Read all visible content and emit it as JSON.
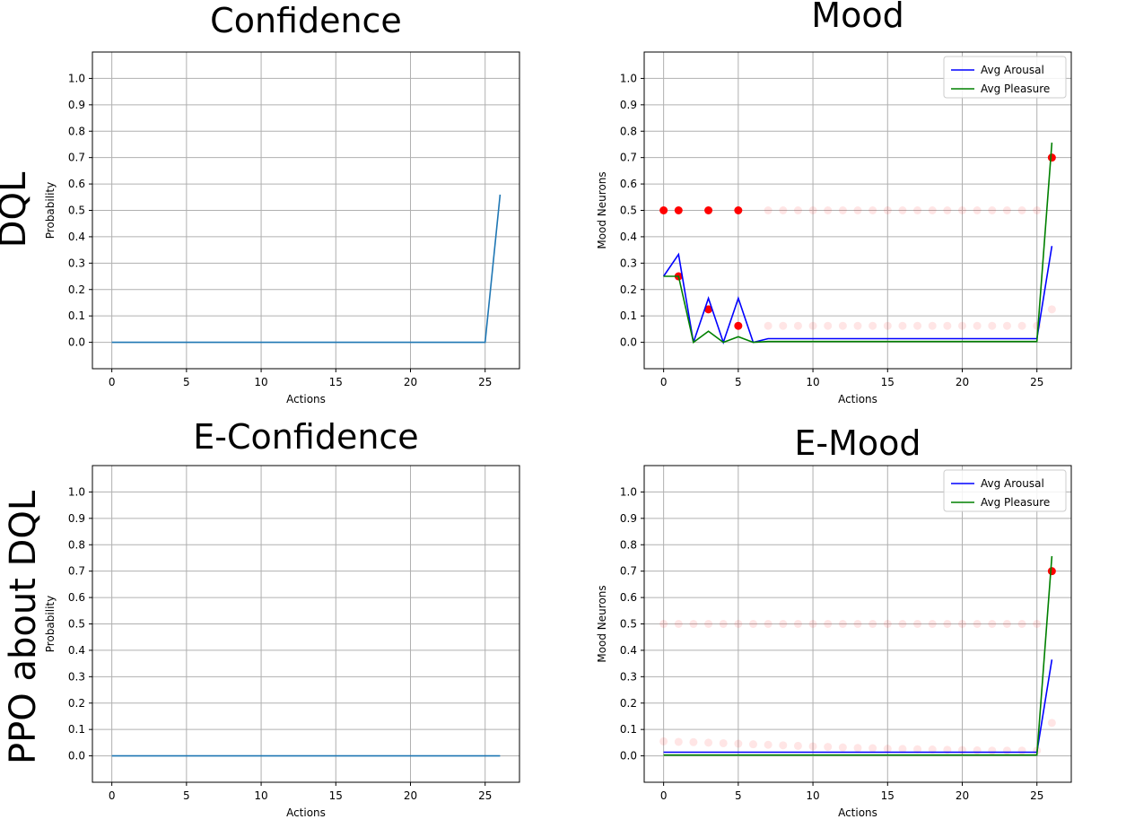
{
  "row_labels": [
    "DQL",
    "PPO about DQL"
  ],
  "chart_data": [
    {
      "type": "line",
      "title": "Confidence",
      "xlabel": "Actions",
      "ylabel": "Probability",
      "xlim": [
        -1.3,
        27.3
      ],
      "ylim": [
        -0.1,
        1.1
      ],
      "xticks": [
        0,
        5,
        10,
        15,
        20,
        25
      ],
      "yticks": [
        0.0,
        0.1,
        0.2,
        0.3,
        0.4,
        0.5,
        0.6,
        0.7,
        0.8,
        0.9,
        1.0
      ],
      "grid": true,
      "series": [
        {
          "name": "Confidence",
          "color": "#1f77b4",
          "x": [
            0,
            1,
            2,
            3,
            4,
            5,
            6,
            7,
            8,
            9,
            10,
            11,
            12,
            13,
            14,
            15,
            16,
            17,
            18,
            19,
            20,
            21,
            22,
            23,
            24,
            25,
            26
          ],
          "y": [
            0,
            0,
            0,
            0,
            0,
            0,
            0,
            0,
            0,
            0,
            0,
            0,
            0,
            0,
            0,
            0,
            0,
            0,
            0,
            0,
            0,
            0,
            0,
            0,
            0,
            0,
            0.56
          ]
        }
      ]
    },
    {
      "type": "line",
      "title": "Mood",
      "xlabel": "Actions",
      "ylabel": "Mood Neurons",
      "xlim": [
        -1.3,
        27.3
      ],
      "ylim": [
        -0.1,
        1.1
      ],
      "xticks": [
        0,
        5,
        10,
        15,
        20,
        25
      ],
      "yticks": [
        0.0,
        0.1,
        0.2,
        0.3,
        0.4,
        0.5,
        0.6,
        0.7,
        0.8,
        0.9,
        1.0
      ],
      "grid": true,
      "legend": "top-right",
      "series": [
        {
          "name": "Avg Arousal",
          "color": "#0000ff",
          "x": [
            0,
            1,
            2,
            3,
            4,
            5,
            6,
            7,
            8,
            9,
            10,
            11,
            12,
            13,
            14,
            15,
            16,
            17,
            18,
            19,
            20,
            21,
            22,
            23,
            24,
            25,
            26
          ],
          "y": [
            0.25,
            0.333,
            0,
            0.167,
            0,
            0.167,
            0,
            0.014,
            0.014,
            0.014,
            0.014,
            0.014,
            0.014,
            0.014,
            0.014,
            0.014,
            0.014,
            0.014,
            0.014,
            0.014,
            0.014,
            0.014,
            0.014,
            0.014,
            0.014,
            0.014,
            0.365
          ]
        },
        {
          "name": "Avg Pleasure",
          "color": "#008000",
          "x": [
            0,
            1,
            2,
            3,
            4,
            5,
            6,
            7,
            8,
            9,
            10,
            11,
            12,
            13,
            14,
            15,
            16,
            17,
            18,
            19,
            20,
            21,
            22,
            23,
            24,
            25,
            26
          ],
          "y": [
            0.25,
            0.25,
            0,
            0.042,
            0,
            0.021,
            0,
            0.003,
            0.003,
            0.003,
            0.003,
            0.003,
            0.003,
            0.003,
            0.003,
            0.003,
            0.003,
            0.003,
            0.003,
            0.003,
            0.003,
            0.003,
            0.003,
            0.003,
            0.003,
            0.003,
            0.757
          ]
        }
      ],
      "scatter": [
        {
          "x": 0,
          "y": 0.5,
          "alpha": 1
        },
        {
          "x": 1,
          "y": 0.5,
          "alpha": 1
        },
        {
          "x": 3,
          "y": 0.5,
          "alpha": 1
        },
        {
          "x": 5,
          "y": 0.5,
          "alpha": 1
        },
        {
          "x": 7,
          "y": 0.5,
          "alpha": 0.1
        },
        {
          "x": 8,
          "y": 0.5,
          "alpha": 0.1
        },
        {
          "x": 9,
          "y": 0.5,
          "alpha": 0.1
        },
        {
          "x": 10,
          "y": 0.5,
          "alpha": 0.1
        },
        {
          "x": 11,
          "y": 0.5,
          "alpha": 0.1
        },
        {
          "x": 12,
          "y": 0.5,
          "alpha": 0.1
        },
        {
          "x": 13,
          "y": 0.5,
          "alpha": 0.1
        },
        {
          "x": 14,
          "y": 0.5,
          "alpha": 0.1
        },
        {
          "x": 15,
          "y": 0.5,
          "alpha": 0.1
        },
        {
          "x": 16,
          "y": 0.5,
          "alpha": 0.1
        },
        {
          "x": 17,
          "y": 0.5,
          "alpha": 0.1
        },
        {
          "x": 18,
          "y": 0.5,
          "alpha": 0.1
        },
        {
          "x": 19,
          "y": 0.5,
          "alpha": 0.1
        },
        {
          "x": 20,
          "y": 0.5,
          "alpha": 0.1
        },
        {
          "x": 21,
          "y": 0.5,
          "alpha": 0.1
        },
        {
          "x": 22,
          "y": 0.5,
          "alpha": 0.1
        },
        {
          "x": 23,
          "y": 0.5,
          "alpha": 0.1
        },
        {
          "x": 24,
          "y": 0.5,
          "alpha": 0.1
        },
        {
          "x": 25,
          "y": 0.5,
          "alpha": 0.1
        },
        {
          "x": 1,
          "y": 0.25,
          "alpha": 1
        },
        {
          "x": 3,
          "y": 0.125,
          "alpha": 1
        },
        {
          "x": 5,
          "y": 0.0625,
          "alpha": 1
        },
        {
          "x": 7,
          "y": 0.0625,
          "alpha": 0.1
        },
        {
          "x": 8,
          "y": 0.0625,
          "alpha": 0.1
        },
        {
          "x": 9,
          "y": 0.0625,
          "alpha": 0.1
        },
        {
          "x": 10,
          "y": 0.0625,
          "alpha": 0.1
        },
        {
          "x": 11,
          "y": 0.0625,
          "alpha": 0.1
        },
        {
          "x": 12,
          "y": 0.0625,
          "alpha": 0.1
        },
        {
          "x": 13,
          "y": 0.0625,
          "alpha": 0.1
        },
        {
          "x": 14,
          "y": 0.0625,
          "alpha": 0.1
        },
        {
          "x": 15,
          "y": 0.0625,
          "alpha": 0.1
        },
        {
          "x": 16,
          "y": 0.0625,
          "alpha": 0.1
        },
        {
          "x": 17,
          "y": 0.0625,
          "alpha": 0.1
        },
        {
          "x": 18,
          "y": 0.0625,
          "alpha": 0.1
        },
        {
          "x": 19,
          "y": 0.0625,
          "alpha": 0.1
        },
        {
          "x": 20,
          "y": 0.0625,
          "alpha": 0.1
        },
        {
          "x": 21,
          "y": 0.0625,
          "alpha": 0.1
        },
        {
          "x": 22,
          "y": 0.0625,
          "alpha": 0.1
        },
        {
          "x": 23,
          "y": 0.0625,
          "alpha": 0.1
        },
        {
          "x": 24,
          "y": 0.0625,
          "alpha": 0.1
        },
        {
          "x": 25,
          "y": 0.0625,
          "alpha": 0.1
        },
        {
          "x": 26,
          "y": 0.7,
          "alpha": 1
        },
        {
          "x": 26,
          "y": 0.125,
          "alpha": 0.1
        }
      ]
    },
    {
      "type": "line",
      "title": "E-Confidence",
      "xlabel": "Actions",
      "ylabel": "Probability",
      "xlim": [
        -1.3,
        27.3
      ],
      "ylim": [
        -0.1,
        1.1
      ],
      "xticks": [
        0,
        5,
        10,
        15,
        20,
        25
      ],
      "yticks": [
        0.0,
        0.1,
        0.2,
        0.3,
        0.4,
        0.5,
        0.6,
        0.7,
        0.8,
        0.9,
        1.0
      ],
      "grid": true,
      "series": [
        {
          "name": "E-Confidence",
          "color": "#1f77b4",
          "x": [
            0,
            1,
            2,
            3,
            4,
            5,
            6,
            7,
            8,
            9,
            10,
            11,
            12,
            13,
            14,
            15,
            16,
            17,
            18,
            19,
            20,
            21,
            22,
            23,
            24,
            25,
            26
          ],
          "y": [
            0,
            0,
            0,
            0,
            0,
            0,
            0,
            0,
            0,
            0,
            0,
            0,
            0,
            0,
            0,
            0,
            0,
            0,
            0,
            0,
            0,
            0,
            0,
            0,
            0,
            0,
            0
          ]
        }
      ]
    },
    {
      "type": "line",
      "title": "E-Mood",
      "xlabel": "Actions",
      "ylabel": "Mood Neurons",
      "xlim": [
        -1.3,
        27.3
      ],
      "ylim": [
        -0.1,
        1.1
      ],
      "xticks": [
        0,
        5,
        10,
        15,
        20,
        25
      ],
      "yticks": [
        0.0,
        0.1,
        0.2,
        0.3,
        0.4,
        0.5,
        0.6,
        0.7,
        0.8,
        0.9,
        1.0
      ],
      "grid": true,
      "legend": "top-right",
      "series": [
        {
          "name": "Avg Arousal",
          "color": "#0000ff",
          "x": [
            0,
            1,
            2,
            3,
            4,
            5,
            6,
            7,
            8,
            9,
            10,
            11,
            12,
            13,
            14,
            15,
            16,
            17,
            18,
            19,
            20,
            21,
            22,
            23,
            24,
            25,
            26
          ],
          "y": [
            0.014,
            0.014,
            0.014,
            0.014,
            0.014,
            0.014,
            0.014,
            0.014,
            0.014,
            0.014,
            0.014,
            0.014,
            0.014,
            0.014,
            0.014,
            0.014,
            0.014,
            0.014,
            0.014,
            0.014,
            0.014,
            0.014,
            0.014,
            0.014,
            0.014,
            0.014,
            0.365
          ]
        },
        {
          "name": "Avg Pleasure",
          "color": "#008000",
          "x": [
            0,
            1,
            2,
            3,
            4,
            5,
            6,
            7,
            8,
            9,
            10,
            11,
            12,
            13,
            14,
            15,
            16,
            17,
            18,
            19,
            20,
            21,
            22,
            23,
            24,
            25,
            26
          ],
          "y": [
            0.003,
            0.003,
            0.003,
            0.003,
            0.003,
            0.003,
            0.003,
            0.003,
            0.003,
            0.003,
            0.003,
            0.003,
            0.003,
            0.003,
            0.003,
            0.003,
            0.003,
            0.003,
            0.003,
            0.003,
            0.003,
            0.003,
            0.003,
            0.003,
            0.003,
            0.003,
            0.757
          ]
        }
      ],
      "scatter": [
        {
          "x": 0,
          "y": 0.5,
          "alpha": 0.1
        },
        {
          "x": 1,
          "y": 0.5,
          "alpha": 0.1
        },
        {
          "x": 2,
          "y": 0.5,
          "alpha": 0.1
        },
        {
          "x": 3,
          "y": 0.5,
          "alpha": 0.1
        },
        {
          "x": 4,
          "y": 0.5,
          "alpha": 0.1
        },
        {
          "x": 5,
          "y": 0.5,
          "alpha": 0.1
        },
        {
          "x": 6,
          "y": 0.5,
          "alpha": 0.1
        },
        {
          "x": 7,
          "y": 0.5,
          "alpha": 0.1
        },
        {
          "x": 8,
          "y": 0.5,
          "alpha": 0.1
        },
        {
          "x": 9,
          "y": 0.5,
          "alpha": 0.1
        },
        {
          "x": 10,
          "y": 0.5,
          "alpha": 0.1
        },
        {
          "x": 11,
          "y": 0.5,
          "alpha": 0.1
        },
        {
          "x": 12,
          "y": 0.5,
          "alpha": 0.1
        },
        {
          "x": 13,
          "y": 0.5,
          "alpha": 0.1
        },
        {
          "x": 14,
          "y": 0.5,
          "alpha": 0.1
        },
        {
          "x": 15,
          "y": 0.5,
          "alpha": 0.1
        },
        {
          "x": 16,
          "y": 0.5,
          "alpha": 0.1
        },
        {
          "x": 17,
          "y": 0.5,
          "alpha": 0.1
        },
        {
          "x": 18,
          "y": 0.5,
          "alpha": 0.1
        },
        {
          "x": 19,
          "y": 0.5,
          "alpha": 0.1
        },
        {
          "x": 20,
          "y": 0.5,
          "alpha": 0.1
        },
        {
          "x": 21,
          "y": 0.5,
          "alpha": 0.1
        },
        {
          "x": 22,
          "y": 0.5,
          "alpha": 0.1
        },
        {
          "x": 23,
          "y": 0.5,
          "alpha": 0.1
        },
        {
          "x": 24,
          "y": 0.5,
          "alpha": 0.1
        },
        {
          "x": 25,
          "y": 0.5,
          "alpha": 0.1
        },
        {
          "x": 0,
          "y": 0.055,
          "alpha": 0.1
        },
        {
          "x": 1,
          "y": 0.053,
          "alpha": 0.1
        },
        {
          "x": 2,
          "y": 0.052,
          "alpha": 0.1
        },
        {
          "x": 3,
          "y": 0.05,
          "alpha": 0.1
        },
        {
          "x": 4,
          "y": 0.048,
          "alpha": 0.1
        },
        {
          "x": 5,
          "y": 0.046,
          "alpha": 0.1
        },
        {
          "x": 6,
          "y": 0.044,
          "alpha": 0.1
        },
        {
          "x": 7,
          "y": 0.042,
          "alpha": 0.1
        },
        {
          "x": 8,
          "y": 0.04,
          "alpha": 0.1
        },
        {
          "x": 9,
          "y": 0.038,
          "alpha": 0.1
        },
        {
          "x": 10,
          "y": 0.036,
          "alpha": 0.1
        },
        {
          "x": 11,
          "y": 0.034,
          "alpha": 0.1
        },
        {
          "x": 12,
          "y": 0.032,
          "alpha": 0.1
        },
        {
          "x": 13,
          "y": 0.03,
          "alpha": 0.1
        },
        {
          "x": 14,
          "y": 0.029,
          "alpha": 0.1
        },
        {
          "x": 15,
          "y": 0.027,
          "alpha": 0.1
        },
        {
          "x": 16,
          "y": 0.026,
          "alpha": 0.1
        },
        {
          "x": 17,
          "y": 0.025,
          "alpha": 0.1
        },
        {
          "x": 18,
          "y": 0.024,
          "alpha": 0.1
        },
        {
          "x": 19,
          "y": 0.023,
          "alpha": 0.1
        },
        {
          "x": 20,
          "y": 0.022,
          "alpha": 0.1
        },
        {
          "x": 21,
          "y": 0.021,
          "alpha": 0.1
        },
        {
          "x": 22,
          "y": 0.02,
          "alpha": 0.1
        },
        {
          "x": 23,
          "y": 0.02,
          "alpha": 0.1
        },
        {
          "x": 24,
          "y": 0.02,
          "alpha": 0.1
        },
        {
          "x": 25,
          "y": 0.02,
          "alpha": 0.1
        },
        {
          "x": 26,
          "y": 0.7,
          "alpha": 1
        },
        {
          "x": 26,
          "y": 0.125,
          "alpha": 0.1
        }
      ]
    }
  ]
}
